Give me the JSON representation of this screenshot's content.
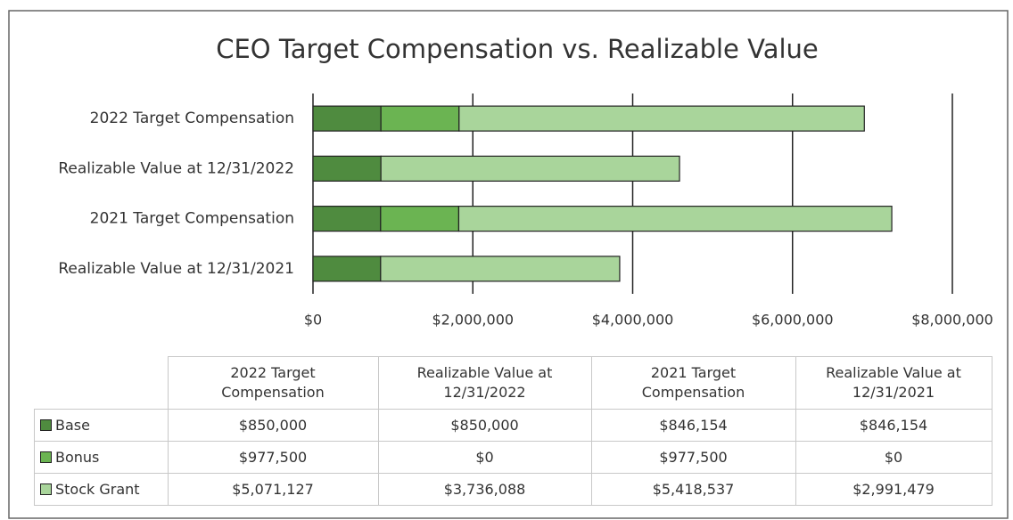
{
  "chart_data": {
    "type": "stacked-bar-horizontal",
    "title": "CEO Target Compensation vs. Realizable Value",
    "categories": [
      "2022 Target Compensation",
      "Realizable Value at 12/31/2022",
      "2021 Target Compensation",
      "Realizable Value at 12/31/2021"
    ],
    "series": [
      {
        "name": "Base",
        "color": "#4f8b3f",
        "values": [
          850000,
          850000,
          846154,
          846154
        ],
        "value_labels": [
          "$850,000",
          "$850,000",
          "$846,154",
          "$846,154"
        ]
      },
      {
        "name": "Bonus",
        "color": "#6bb452",
        "values": [
          977500,
          0,
          977500,
          0
        ],
        "value_labels": [
          "$977,500",
          "$0",
          "$977,500",
          "$0"
        ]
      },
      {
        "name": "Stock Grant",
        "color": "#a9d59b",
        "values": [
          5071127,
          3736088,
          5418537,
          2991479
        ],
        "value_labels": [
          "$5,071,127",
          "$3,736,088",
          "$5,418,537",
          "$2,991,479"
        ]
      }
    ],
    "xlim": [
      0,
      8000000
    ],
    "xticks": [
      {
        "value": 0,
        "label": "$0"
      },
      {
        "value": 2000000,
        "label": "$2,000,000"
      },
      {
        "value": 4000000,
        "label": "$4,000,000"
      },
      {
        "value": 6000000,
        "label": "$6,000,000"
      },
      {
        "value": 8000000,
        "label": "$8,000,000"
      }
    ],
    "grid": true
  }
}
